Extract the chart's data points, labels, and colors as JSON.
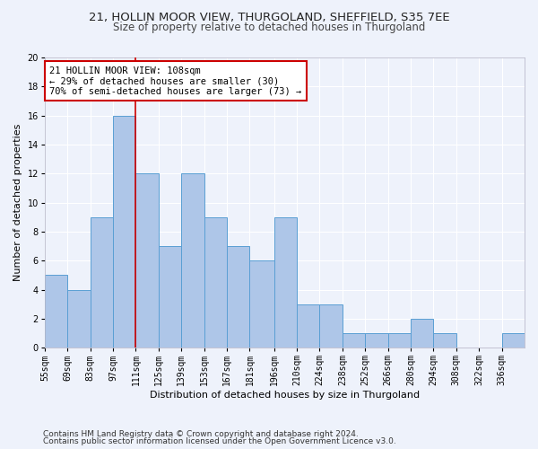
{
  "title1": "21, HOLLIN MOOR VIEW, THURGOLAND, SHEFFIELD, S35 7EE",
  "title2": "Size of property relative to detached houses in Thurgoland",
  "xlabel": "Distribution of detached houses by size in Thurgoland",
  "ylabel": "Number of detached properties",
  "bin_labels": [
    "55sqm",
    "69sqm",
    "83sqm",
    "97sqm",
    "111sqm",
    "125sqm",
    "139sqm",
    "153sqm",
    "167sqm",
    "181sqm",
    "196sqm",
    "210sqm",
    "224sqm",
    "238sqm",
    "252sqm",
    "266sqm",
    "280sqm",
    "294sqm",
    "308sqm",
    "322sqm",
    "336sqm"
  ],
  "bin_edges": [
    55,
    69,
    83,
    97,
    111,
    125,
    139,
    153,
    167,
    181,
    196,
    210,
    224,
    238,
    252,
    266,
    280,
    294,
    308,
    322,
    336,
    350
  ],
  "bar_values": [
    5,
    4,
    9,
    16,
    12,
    7,
    12,
    9,
    7,
    6,
    9,
    3,
    3,
    1,
    1,
    1,
    2,
    1,
    0,
    0,
    1
  ],
  "bar_color": "#aec6e8",
  "bar_edge_color": "#5a9fd4",
  "annotation_text": "21 HOLLIN MOOR VIEW: 108sqm\n← 29% of detached houses are smaller (30)\n70% of semi-detached houses are larger (73) →",
  "annotation_box_color": "#ffffff",
  "annotation_box_edge": "#cc0000",
  "red_line_x": 111,
  "ylim": [
    0,
    20
  ],
  "yticks": [
    0,
    2,
    4,
    6,
    8,
    10,
    12,
    14,
    16,
    18,
    20
  ],
  "footer1": "Contains HM Land Registry data © Crown copyright and database right 2024.",
  "footer2": "Contains public sector information licensed under the Open Government Licence v3.0.",
  "bg_color": "#eef2fb",
  "grid_color": "#ffffff",
  "title1_fontsize": 9.5,
  "title2_fontsize": 8.5,
  "axis_label_fontsize": 8,
  "tick_fontsize": 7,
  "annotation_fontsize": 7.5,
  "footer_fontsize": 6.5
}
